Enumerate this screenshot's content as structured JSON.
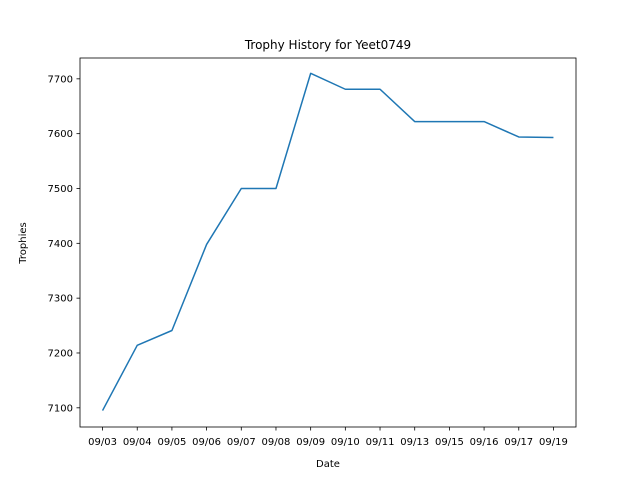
{
  "chart_data": {
    "type": "line",
    "title": "Trophy History for Yeet0749",
    "xlabel": "Date",
    "ylabel": "Trophies",
    "categories": [
      "09/03",
      "09/04",
      "09/05",
      "09/06",
      "09/07",
      "09/08",
      "09/09",
      "09/10",
      "09/11",
      "09/13",
      "09/15",
      "09/16",
      "09/17",
      "09/19"
    ],
    "series": [
      {
        "values": [
          7095,
          7214,
          7241,
          7398,
          7500,
          7500,
          7710,
          7681,
          7681,
          7622,
          7622,
          7622,
          7594,
          7593
        ],
        "color": "#1f77b4"
      }
    ],
    "ylim": [
      7065,
      7738
    ],
    "yticks": [
      7100,
      7200,
      7300,
      7400,
      7500,
      7600,
      7700
    ],
    "grid": false,
    "legend": "none"
  }
}
